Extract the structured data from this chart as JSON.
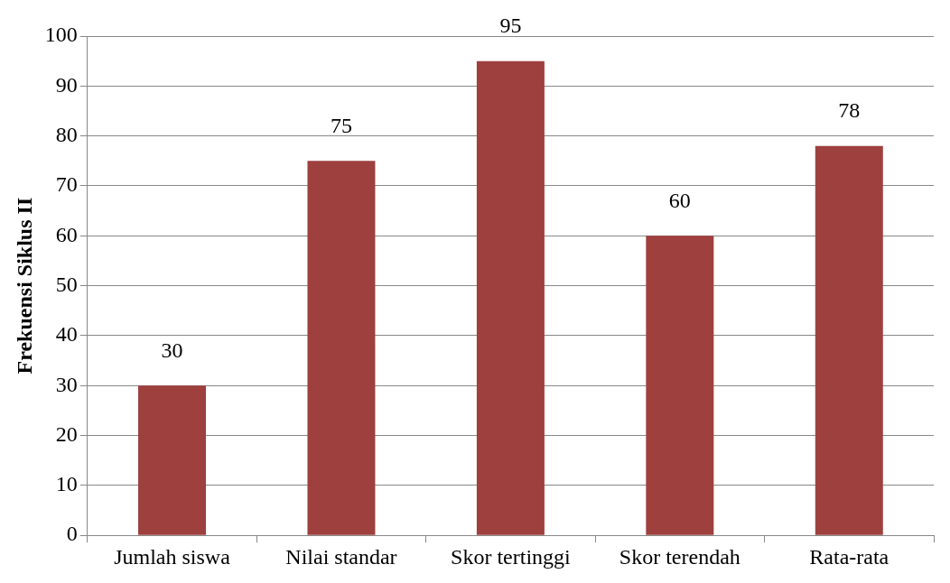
{
  "chart_data": {
    "type": "bar",
    "ylabel": "Frekuensi Siklus II",
    "categories": [
      "Jumlah siswa",
      "Nilai standar",
      "Skor tertinggi",
      "Skor terendah",
      "Rata-rata"
    ],
    "values": [
      30,
      75,
      95,
      60,
      78
    ],
    "color": "#9e403e",
    "ylim": [
      0,
      100
    ],
    "yticks": [
      0,
      10,
      20,
      30,
      40,
      50,
      60,
      70,
      80,
      90,
      100
    ],
    "grid": "y",
    "data_labels": true,
    "legend": false
  }
}
